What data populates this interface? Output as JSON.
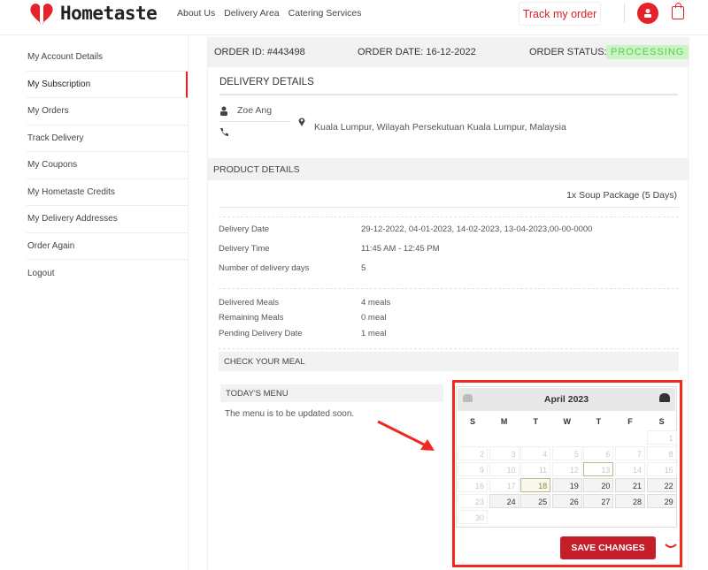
{
  "header": {
    "logo": "Hometaste",
    "nav": [
      "About Us",
      "Delivery Area",
      "Catering Services"
    ],
    "track_order": "Track my order"
  },
  "sidebar": {
    "items": [
      "My Account Details",
      "My Subscription",
      "My Orders",
      "Track Delivery",
      "My Coupons",
      "My Hometaste Credits",
      "My Delivery Addresses",
      "Order Again",
      "Logout"
    ],
    "active": "My Subscription"
  },
  "order": {
    "id": "ORDER ID: #443498",
    "date": "ORDER DATE: 16-12-2022",
    "status_label": "ORDER STATUS:",
    "status": "PROCESSING",
    "status_color": "#5cc75a"
  },
  "delivery": {
    "title": "DELIVERY DETAILS",
    "name": "Zoe Ang",
    "address": "Kuala Lumpur, Wilayah Persekutuan Kuala Lumpur, Malaysia"
  },
  "product": {
    "title": "PRODUCT DETAILS",
    "package": "1x Soup Package (5 Days)",
    "rows": [
      {
        "label": "Delivery Date",
        "value": "29-12-2022, 04-01-2023, 14-02-2023, 13-04-2023,00-00-0000"
      },
      {
        "label": "Delivery Time",
        "value": "11:45 AM - 12:45 PM"
      },
      {
        "label": "Number of delivery days",
        "value": "5"
      }
    ],
    "meals": [
      {
        "label": "Delivered Meals",
        "value": "4 meals"
      },
      {
        "label": "Remaining Meals",
        "value": "0 meal"
      },
      {
        "label": "Pending Delivery Date",
        "value": "1 meal"
      }
    ]
  },
  "meal": {
    "title": "CHECK YOUR MEAL",
    "todays_menu": "TODAY'S MENU",
    "menu_text": "The menu is to be updated soon."
  },
  "calendar": {
    "month": "April 2023",
    "weekdays": [
      "S",
      "M",
      "T",
      "W",
      "T",
      "F",
      "S"
    ],
    "first_weekday": 6,
    "today": 13,
    "selected": 18,
    "enabled": [
      18,
      19,
      20,
      21,
      22,
      24,
      25,
      26,
      27,
      28,
      29
    ],
    "days": 30
  },
  "save_label": "SAVE CHANGES",
  "colors": {
    "brand": "#e52228",
    "highlight": "#f0291c",
    "save": "#c51d2a"
  }
}
